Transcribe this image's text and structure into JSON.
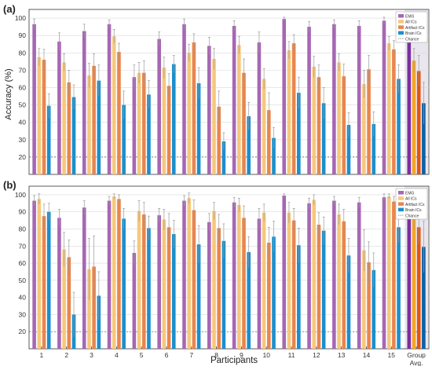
{
  "chart_data": [
    {
      "panel": "(a)",
      "type": "bar",
      "ylabel": "Accuracy (%)",
      "ylim": [
        10,
        105
      ],
      "yticks": [
        20,
        30,
        40,
        50,
        60,
        70,
        80,
        90,
        100
      ],
      "grid": true,
      "chance_level": 20,
      "legend_position": "top-right",
      "categories": [
        "1",
        "2",
        "3",
        "4",
        "5",
        "6",
        "7",
        "8",
        "9",
        "10",
        "11",
        "12",
        "13",
        "14",
        "15",
        "Group Avg."
      ],
      "series": [
        {
          "name": "EMG",
          "color": "#A667B4",
          "values": [
            96.5,
            86.5,
            92.5,
            96.5,
            66,
            88,
            96.5,
            84,
            95.5,
            86,
            99.5,
            95,
            96.5,
            95.5,
            98.5,
            91.5
          ],
          "errors": [
            3,
            5,
            4,
            2.5,
            7,
            4,
            3,
            5,
            3,
            6,
            1,
            3,
            2.5,
            3,
            2,
            6
          ]
        },
        {
          "name": "All ICs",
          "color": "#F7C77B",
          "values": [
            77.5,
            74.5,
            67,
            89.5,
            68.5,
            71.5,
            80,
            76.5,
            84.5,
            65,
            81.5,
            72,
            74.5,
            62,
            85.5,
            75.5
          ],
          "errors": [
            5,
            5,
            7,
            4,
            6,
            6,
            5,
            6,
            5,
            6,
            5,
            6,
            5,
            8,
            4,
            7
          ]
        },
        {
          "name": "Artifact ICs",
          "color": "#E8864E",
          "values": [
            76,
            63,
            72.5,
            80.5,
            68.5,
            61,
            86,
            49,
            68.5,
            47,
            85.5,
            66,
            66.5,
            70.5,
            82,
            69.5
          ],
          "errors": [
            6,
            7,
            7,
            5,
            7,
            7,
            5,
            9,
            8,
            10,
            5,
            7,
            7,
            8,
            5,
            9
          ]
        },
        {
          "name": "Brain ICs",
          "color": "#1B8FCB",
          "values": [
            49.5,
            54.5,
            64,
            50,
            56,
            73.5,
            62.5,
            29,
            43.5,
            31,
            57,
            51,
            38.5,
            39,
            65,
            51
          ],
          "errors": [
            7,
            7,
            9,
            8,
            8,
            5,
            9,
            5,
            8,
            6,
            9,
            9,
            7,
            7,
            8,
            12
          ]
        }
      ]
    },
    {
      "panel": "(b)",
      "type": "bar",
      "xlabel": "Participants",
      "ylim": [
        10,
        105
      ],
      "yticks": [
        20,
        30,
        40,
        50,
        60,
        70,
        80,
        90,
        100
      ],
      "grid": true,
      "chance_level": 20,
      "legend_position": "top-right",
      "categories": [
        "1",
        "2",
        "3",
        "4",
        "5",
        "6",
        "7",
        "8",
        "9",
        "10",
        "11",
        "12",
        "13",
        "14",
        "15",
        "Group Avg."
      ],
      "series": [
        {
          "name": "EMG",
          "color": "#A667B4",
          "values": [
            96.5,
            86.5,
            92.5,
            96.5,
            66,
            88,
            96.5,
            84,
            95.5,
            86,
            99.5,
            95,
            96.5,
            95.5,
            98.5,
            91.5
          ],
          "errors": [
            3,
            5,
            4,
            2.5,
            7,
            4,
            3,
            5,
            3,
            6,
            1,
            3,
            2.5,
            3,
            2,
            6
          ]
        },
        {
          "name": "All ICs",
          "color": "#F7C77B",
          "values": [
            97.5,
            68,
            56.5,
            99,
            90.5,
            85.5,
            98,
            90.5,
            94,
            89.5,
            89.5,
            97,
            88.5,
            67.5,
            99,
            87.5
          ],
          "errors": [
            3,
            10,
            18,
            1.5,
            6,
            6,
            3,
            5,
            4,
            5,
            6,
            3,
            6,
            12,
            1.5,
            8
          ]
        },
        {
          "name": "Artifact ICs",
          "color": "#E8864E",
          "values": [
            87.5,
            63.5,
            58,
            97.5,
            88.5,
            81,
            91,
            80.5,
            86.5,
            72,
            85,
            82.5,
            84.5,
            60.5,
            96,
            81
          ],
          "errors": [
            7,
            10,
            18,
            2.5,
            7,
            8,
            6,
            8,
            7,
            9,
            7,
            7,
            7,
            12,
            3,
            10
          ]
        },
        {
          "name": "Brain ICs",
          "color": "#1B8FCB",
          "values": [
            90,
            30,
            41,
            86,
            80.5,
            77,
            71,
            73,
            66.5,
            75.5,
            70.5,
            79,
            64.5,
            56,
            81,
            69.5
          ],
          "errors": [
            5,
            13,
            14,
            6,
            7,
            8,
            11,
            10,
            9,
            9,
            10,
            8,
            10,
            10,
            9,
            15
          ]
        }
      ]
    }
  ],
  "legend": {
    "emg": "EMG",
    "all_ics": "All ICs",
    "artifact_ics": "Artifact ICs",
    "brain_ics": "Brain ICs",
    "chance": "Chance"
  },
  "group_colors": {
    "EMG": "#7B2F9E",
    "All ICs": "#F5A623",
    "Artifact ICs": "#E2550E",
    "Brain ICs": "#0E5FA6"
  },
  "colors": {
    "highlight_bar": "#E9E6EF"
  }
}
